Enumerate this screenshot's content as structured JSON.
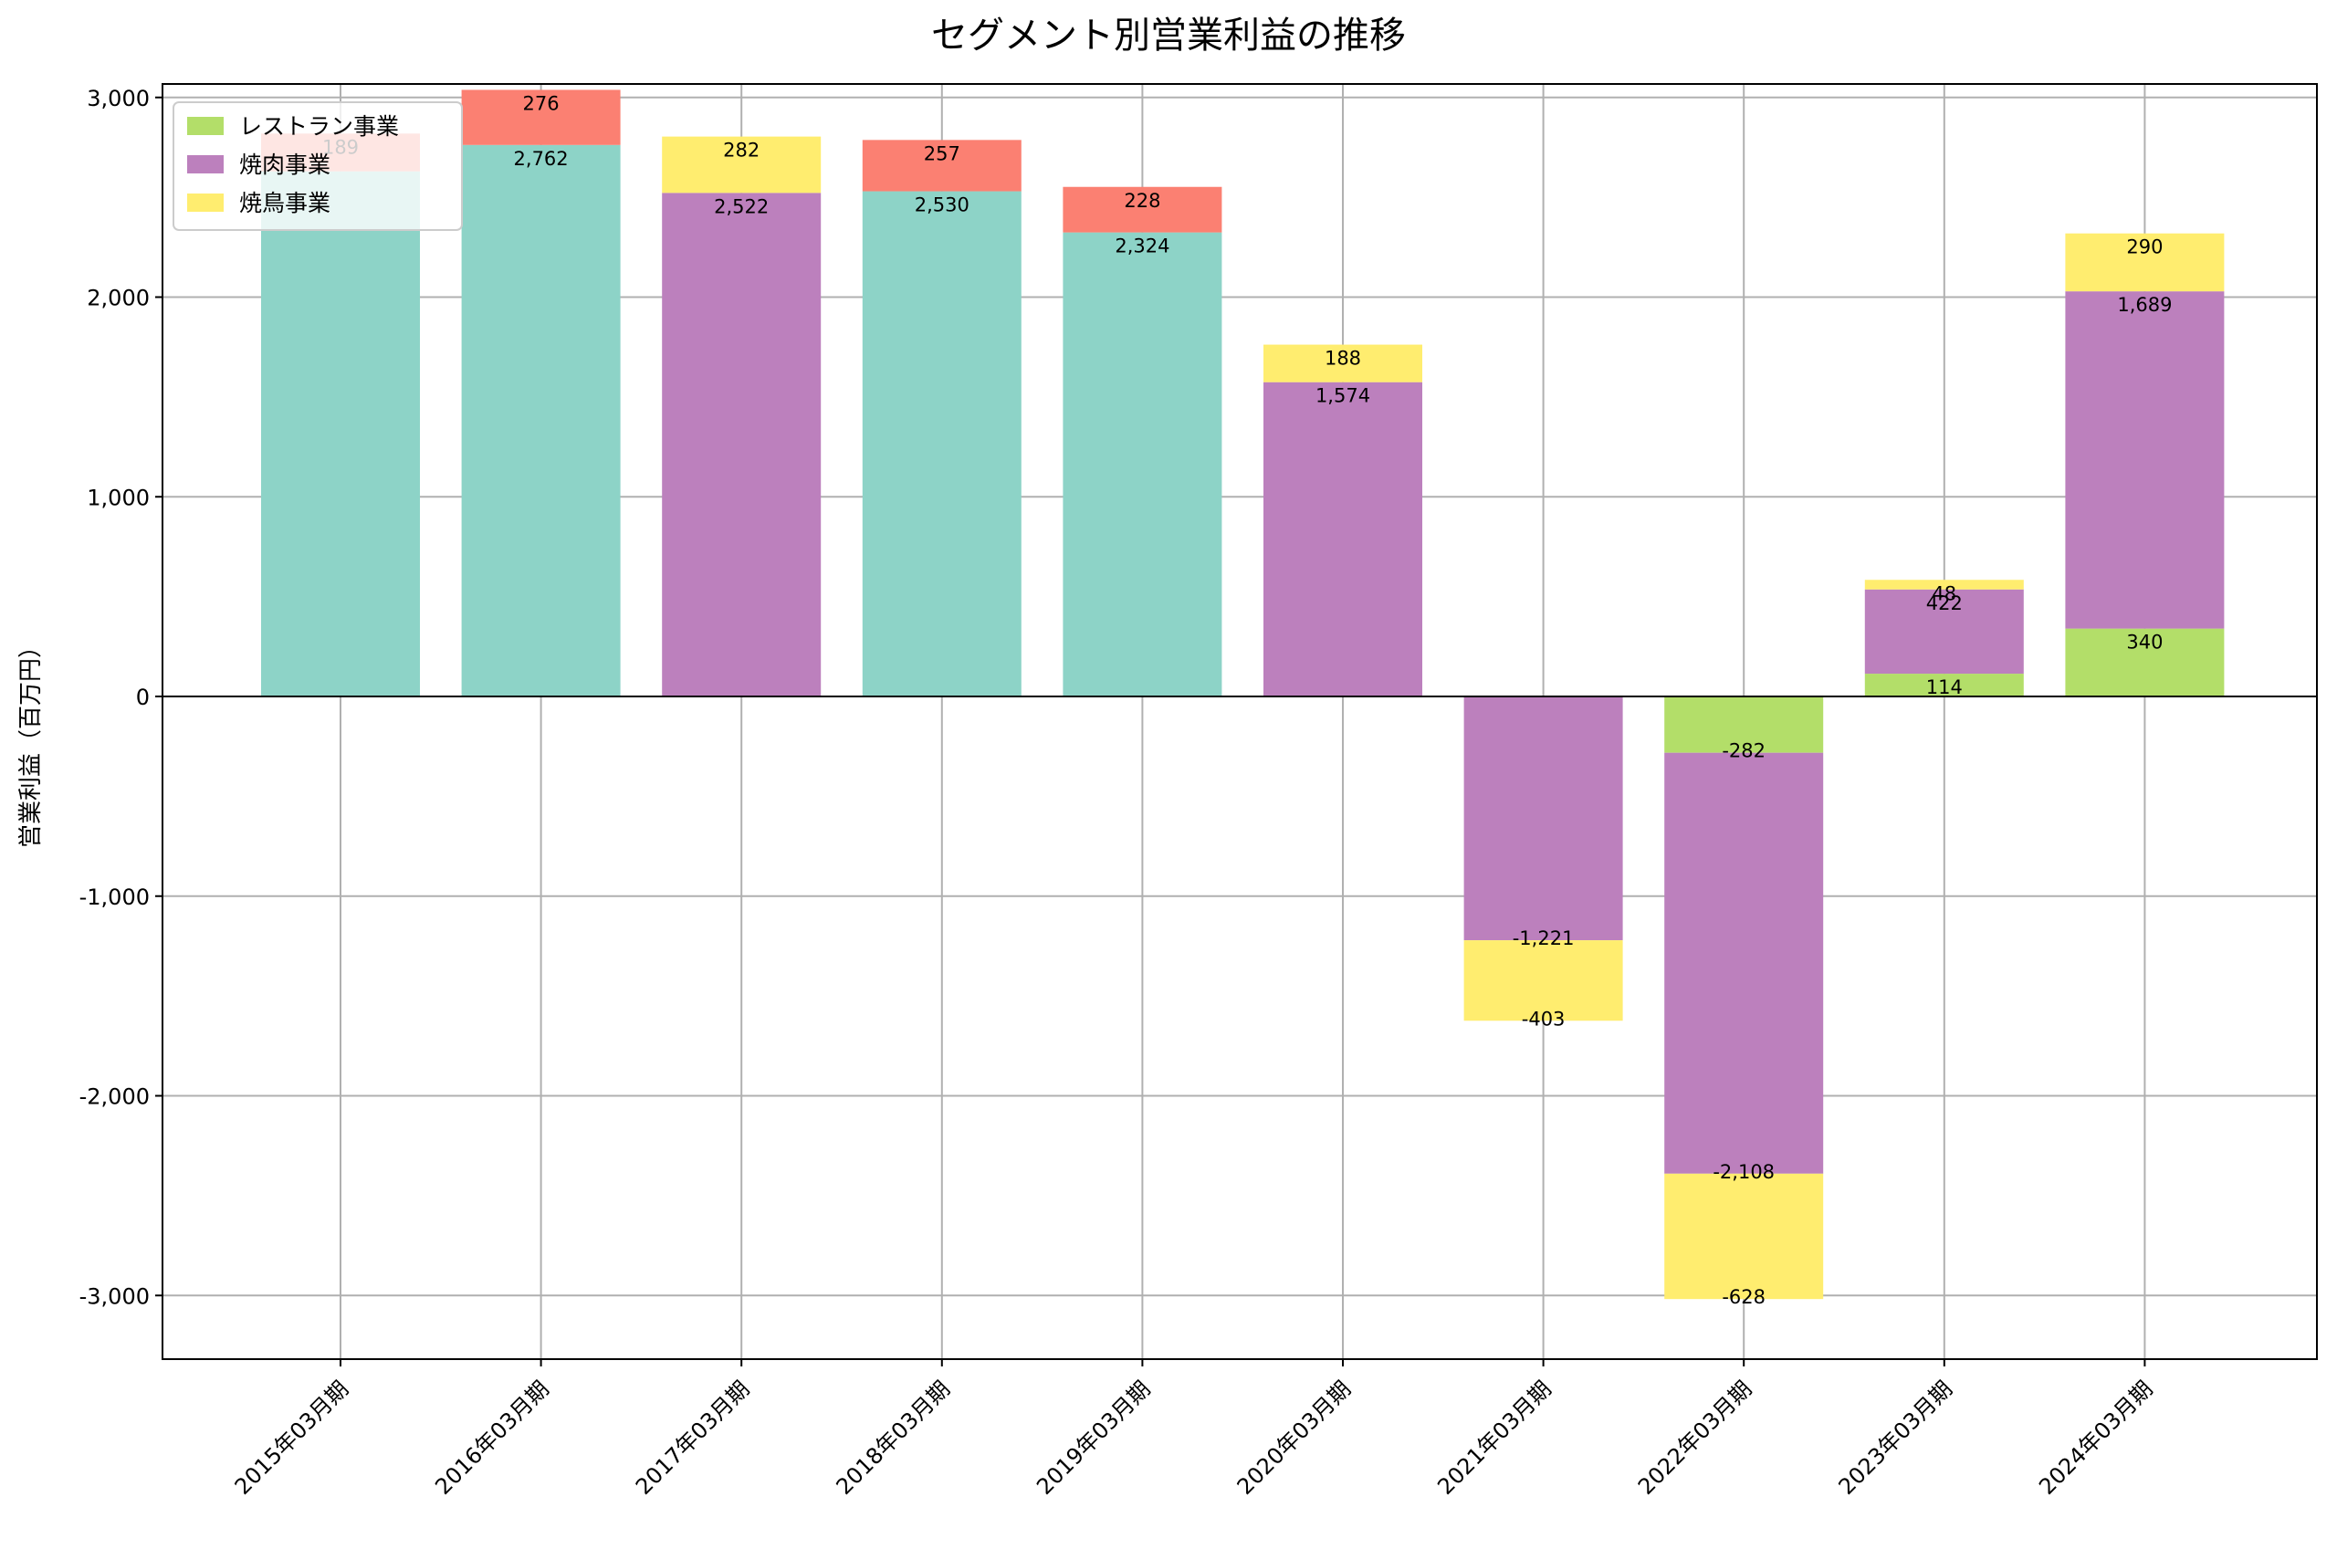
{
  "chart_data": {
    "type": "bar",
    "stacked": true,
    "title": "セグメント別営業利益の推移",
    "xlabel": "",
    "ylabel": "営業利益（百万円）",
    "ylim": [
      -3300,
      3050
    ],
    "yticks": [
      -3000,
      -2000,
      -1000,
      0,
      1000,
      2000,
      3000
    ],
    "ytick_labels": [
      "-3,000",
      "-2,000",
      "-1,000",
      "0",
      "1,000",
      "2,000",
      "3,000"
    ],
    "grid": true,
    "legend_position": "top-left",
    "categories": [
      "2015年03月期",
      "2016年03月期",
      "2017年03月期",
      "2018年03月期",
      "2019年03月期",
      "2020年03月期",
      "2021年03月期",
      "2022年03月期",
      "2023年03月期",
      "2024年03月期"
    ],
    "series": [
      {
        "name": "",
        "color": "#8dd3c7",
        "in_legend": false,
        "values": [
          2630,
          2762,
          null,
          2530,
          2324,
          null,
          null,
          null,
          null,
          null
        ],
        "labels": [
          "",
          "2,762",
          "",
          "2,530",
          "2,324",
          "",
          "",
          "",
          "",
          ""
        ]
      },
      {
        "name": "",
        "color": "#fb8072",
        "in_legend": false,
        "values": [
          189,
          276,
          null,
          257,
          228,
          null,
          null,
          null,
          null,
          null
        ],
        "labels": [
          "189",
          "276",
          "",
          "257",
          "228",
          "",
          "",
          "",
          "",
          ""
        ]
      },
      {
        "name": "レストラン事業",
        "color": "#b3de69",
        "in_legend": true,
        "values": [
          null,
          null,
          null,
          null,
          null,
          null,
          null,
          -282,
          114,
          340
        ],
        "labels": [
          "",
          "",
          "",
          "",
          "",
          "",
          "",
          "-282",
          "114",
          "340"
        ]
      },
      {
        "name": "焼肉事業",
        "color": "#bc80bd",
        "in_legend": true,
        "values": [
          null,
          null,
          2522,
          null,
          null,
          1574,
          -1221,
          -2108,
          422,
          1689
        ],
        "labels": [
          "",
          "",
          "2,522",
          "",
          "",
          "1,574",
          "-1,221",
          "-2,108",
          "422",
          "1,689"
        ]
      },
      {
        "name": "焼鳥事業",
        "color": "#ffed6f",
        "in_legend": true,
        "values": [
          null,
          null,
          282,
          null,
          null,
          188,
          -403,
          -628,
          48,
          290
        ],
        "labels": [
          "",
          "",
          "282",
          "",
          "",
          "188",
          "-403",
          "-628",
          "48",
          "290"
        ]
      }
    ]
  }
}
